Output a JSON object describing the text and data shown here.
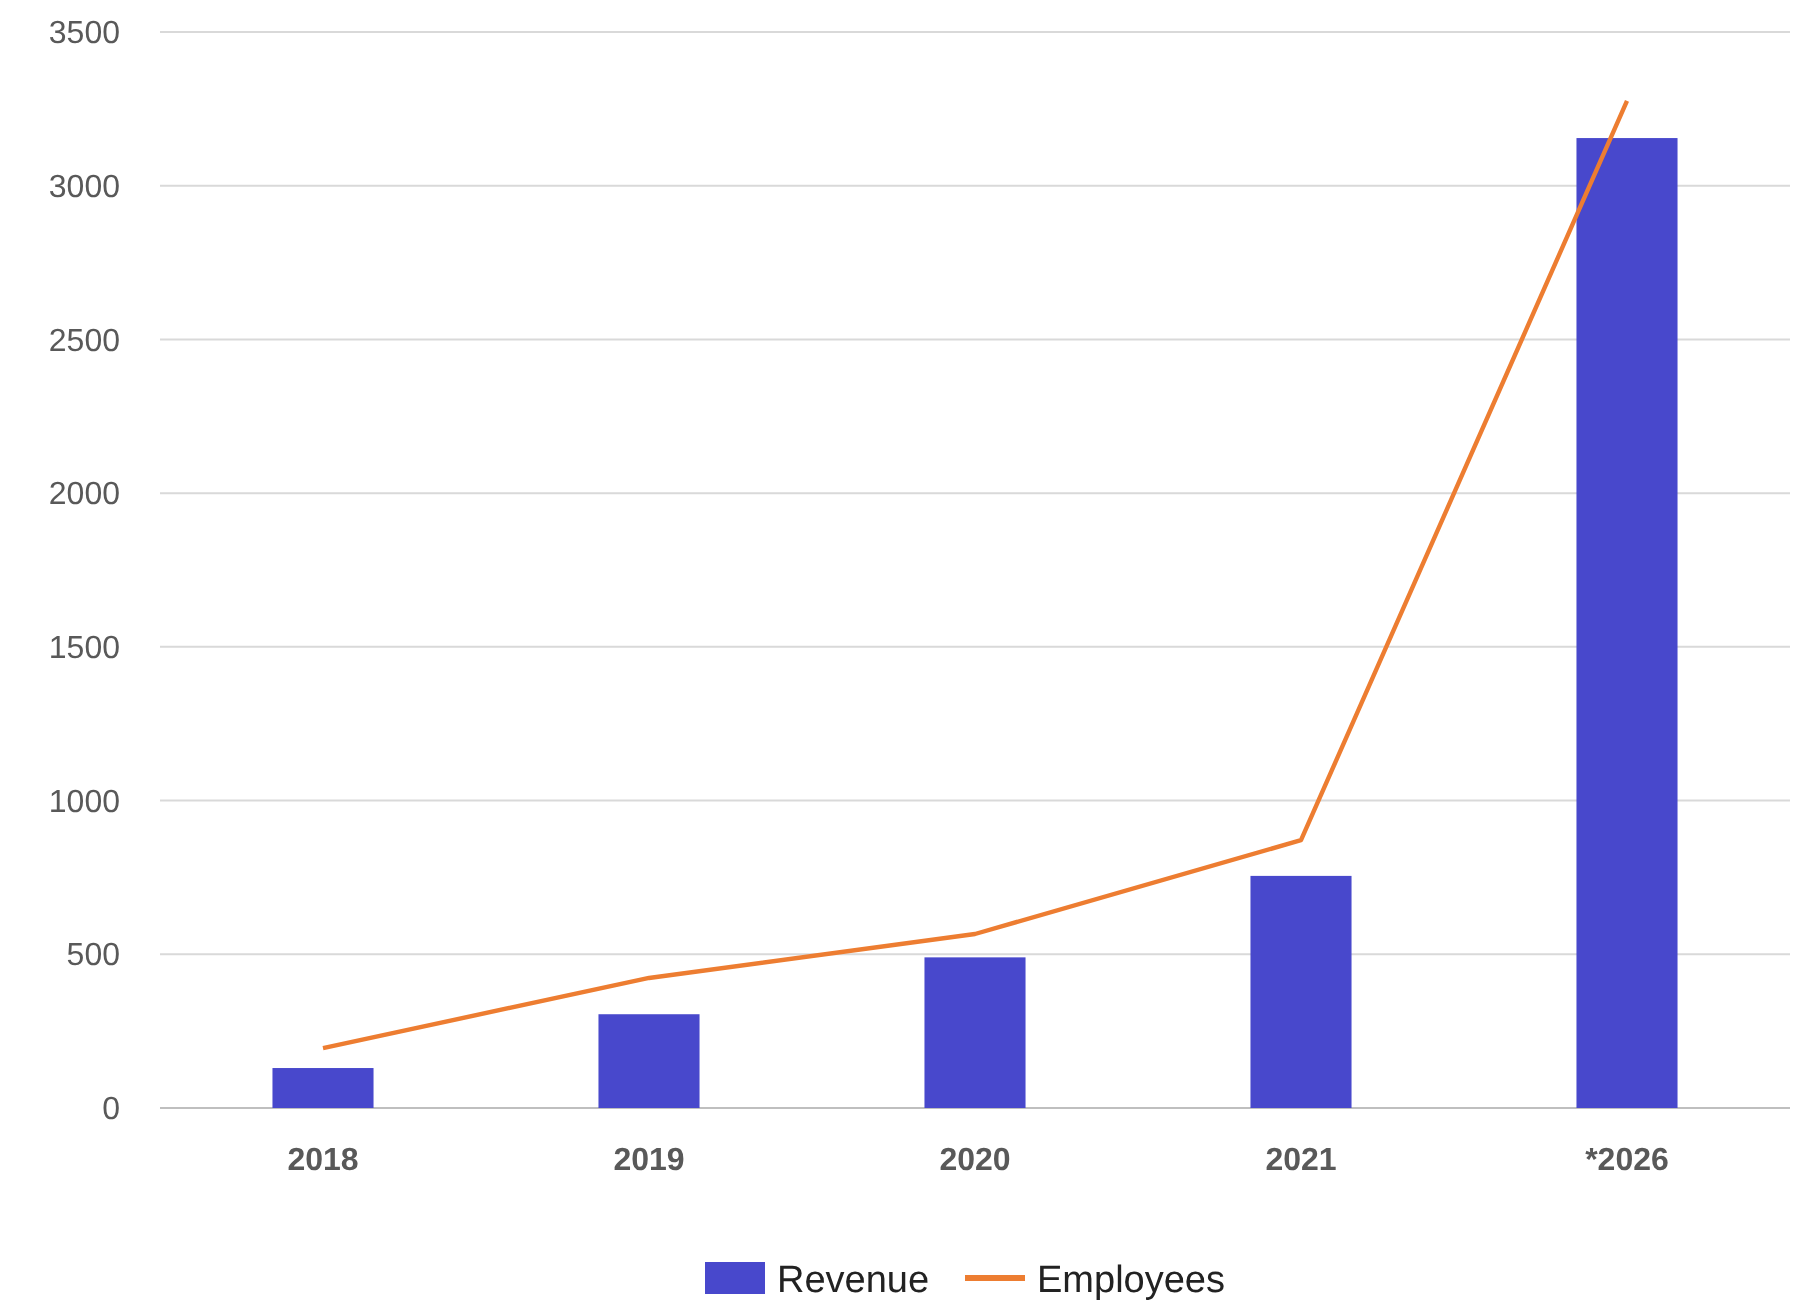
{
  "chart_data": {
    "type": "bar",
    "categories": [
      "2018",
      "2019",
      "2020",
      "2021",
      "*2026"
    ],
    "series": [
      {
        "name": "Revenue",
        "color": "#4848cc",
        "values": [
          130,
          305,
          490,
          755,
          3155
        ]
      },
      {
        "name": "Employees",
        "type": "line",
        "color": "#ed7d31",
        "values": [
          195,
          423,
          566,
          871,
          3276
        ]
      }
    ],
    "ylim": [
      0,
      3500
    ],
    "yticks": [
      0,
      500,
      1000,
      1500,
      2000,
      2500,
      3000,
      3500
    ],
    "grid": "y",
    "legend": "bottom",
    "marker": "none",
    "line_style": "solid"
  }
}
